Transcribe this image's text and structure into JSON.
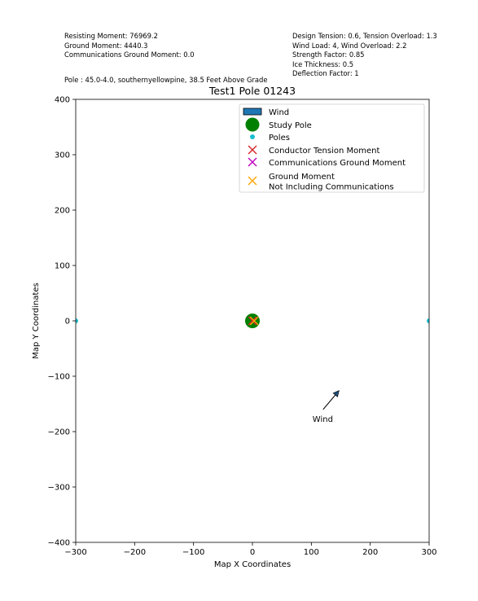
{
  "info": {
    "left": [
      "Resisting Moment: 76969.2",
      "Ground Moment: 4440.3",
      "Communications Ground Moment: 0.0"
    ],
    "right": [
      "Design Tension: 0.6, Tension Overload: 1.3",
      "Wind Load: 4, Wind Overload: 2.2",
      "Strength Factor: 0.85",
      "Ice Thickness: 0.5",
      "Deflection Factor: 1"
    ],
    "pole_description": "Pole : 45.0-4.0, southernyellowpine, 38.5 Feet Above Grade"
  },
  "chart_data": {
    "type": "scatter",
    "title": "Test1 Pole 01243",
    "xlabel": "Map X Coordinates",
    "ylabel": "Map Y Coordinates",
    "xlim": [
      -300,
      300
    ],
    "ylim": [
      -400,
      400
    ],
    "xticks": [
      -300,
      -200,
      -100,
      0,
      100,
      200,
      300
    ],
    "yticks": [
      -400,
      -300,
      -200,
      -100,
      0,
      100,
      200,
      300,
      400
    ],
    "grid": false,
    "legend_position": "top-right",
    "legend": [
      {
        "label": "Wind",
        "marker": "patch",
        "color": "#1f77b4"
      },
      {
        "label": "Study Pole",
        "marker": "circle-large",
        "color": "#008000"
      },
      {
        "label": "Poles",
        "marker": "circle-small",
        "color": "#17becf"
      },
      {
        "label": "Conductor Tension Moment",
        "marker": "x",
        "color": "#d62728"
      },
      {
        "label": "Communications Ground Moment",
        "marker": "x",
        "color": "#bf00bf"
      },
      {
        "label": "Ground Moment\nNot Including Communications",
        "marker": "x",
        "color": "#ffa500"
      }
    ],
    "study_pole": {
      "x": 0,
      "y": 0,
      "color": "#008000"
    },
    "poles": [
      {
        "x": -300,
        "y": 0
      },
      {
        "x": 300,
        "y": 0
      }
    ],
    "poles_color": "#17becf",
    "markers": [
      {
        "name": "Conductor Tension Moment",
        "x": 0,
        "y": 0,
        "color": "#d62728"
      },
      {
        "name": "Ground Moment",
        "x": 3,
        "y": 0,
        "color": "#ffa500"
      }
    ],
    "wind_arrow": {
      "label": "Wind",
      "from": {
        "x": 120,
        "y": -160
      },
      "to": {
        "x": 147,
        "y": -126
      }
    }
  }
}
